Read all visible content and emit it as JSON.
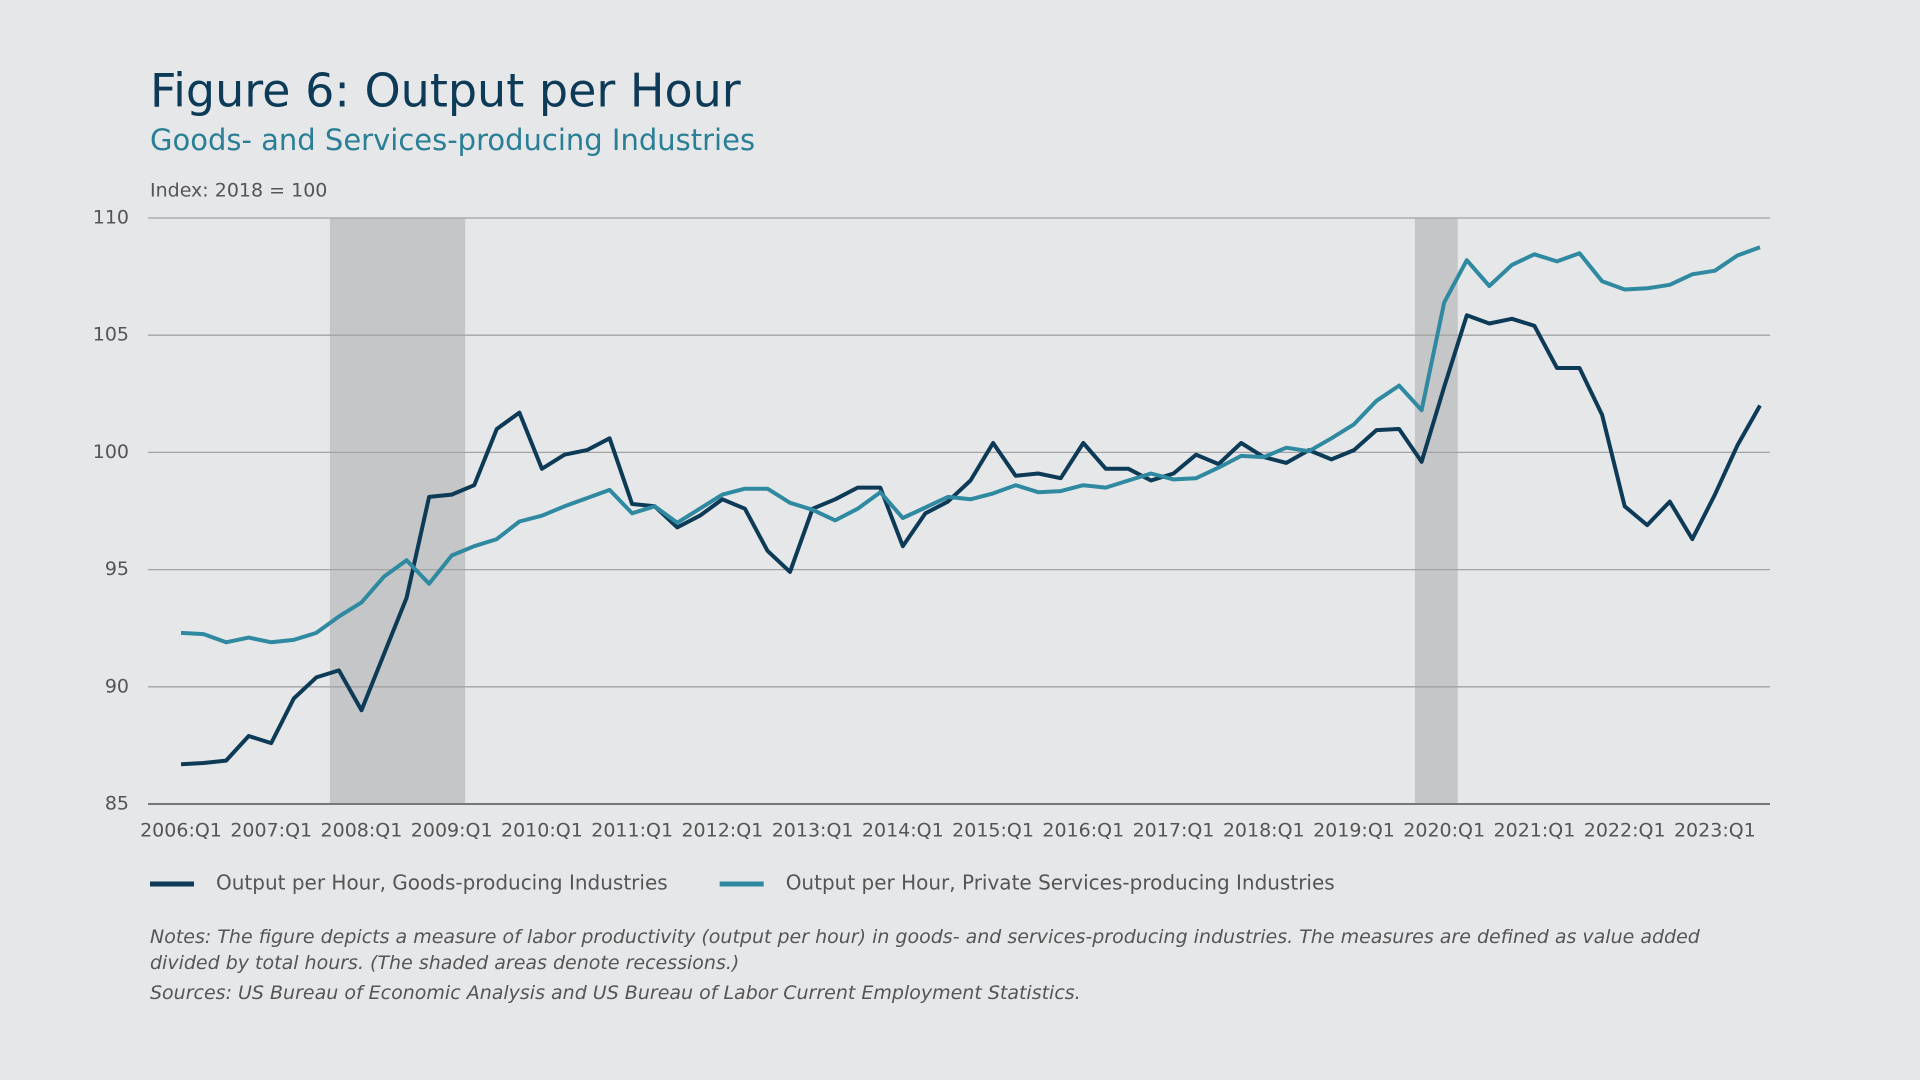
{
  "chart_data": {
    "type": "line",
    "title": "Figure 6: Output per Hour",
    "subtitle": "Goods- and Services-producing Industries",
    "y_axis_label": "Index: 2018 = 100",
    "categories": [
      "2006:Q1",
      null,
      null,
      null,
      "2007:Q1",
      null,
      null,
      null,
      "2008:Q1",
      null,
      null,
      null,
      "2009:Q1",
      null,
      null,
      null,
      "2010:Q1",
      null,
      null,
      null,
      "2011:Q1",
      null,
      null,
      null,
      "2012:Q1",
      null,
      null,
      null,
      "2013:Q1",
      null,
      null,
      null,
      "2014:Q1",
      null,
      null,
      null,
      "2015:Q1",
      null,
      null,
      null,
      "2016:Q1",
      null,
      null,
      null,
      "2017:Q1",
      null,
      null,
      null,
      "2018:Q1",
      null,
      null,
      null,
      "2019:Q1",
      null,
      null,
      null,
      "2020:Q1",
      null,
      null,
      null,
      "2021:Q1",
      null,
      null,
      null,
      "2022:Q1",
      null,
      null,
      null,
      "2023:Q1",
      null,
      null
    ],
    "series": [
      {
        "name": "Output per Hour, Goods-producing Industries",
        "color": "#0d3a56",
        "values": [
          86.7,
          86.75,
          86.85,
          87.9,
          87.6,
          89.5,
          90.4,
          90.7,
          89.0,
          91.4,
          93.8,
          98.1,
          98.2,
          98.6,
          101.0,
          101.7,
          99.3,
          99.9,
          100.1,
          100.6,
          97.8,
          97.7,
          96.8,
          97.3,
          98.0,
          97.6,
          95.8,
          94.9,
          97.6,
          98.0,
          98.5,
          98.5,
          96.0,
          97.4,
          97.9,
          98.8,
          100.4,
          99.0,
          99.1,
          98.9,
          100.4,
          99.3,
          99.3,
          98.8,
          99.1,
          99.9,
          99.5,
          100.4,
          99.8,
          99.55,
          100.1,
          99.7,
          100.1,
          100.95,
          101.0,
          99.6,
          102.8,
          105.85,
          105.5,
          105.7,
          105.4,
          103.6,
          103.6,
          101.6,
          97.7,
          96.9,
          97.9,
          96.3,
          98.2,
          100.3,
          102.0
        ]
      },
      {
        "name": "Output per Hour, Private Services-producing Industries",
        "color": "#2f89a0",
        "values": [
          92.3,
          92.25,
          91.9,
          92.1,
          91.9,
          92.0,
          92.3,
          93.0,
          93.6,
          94.7,
          95.4,
          94.4,
          95.6,
          96.0,
          96.3,
          97.05,
          97.3,
          97.7,
          98.05,
          98.4,
          97.4,
          97.7,
          97.0,
          97.6,
          98.2,
          98.45,
          98.45,
          97.85,
          97.55,
          97.1,
          97.6,
          98.3,
          97.2,
          97.65,
          98.1,
          98.0,
          98.25,
          98.6,
          98.3,
          98.35,
          98.6,
          98.5,
          98.8,
          99.1,
          98.85,
          98.9,
          99.35,
          99.85,
          99.8,
          100.2,
          100.05,
          100.6,
          101.2,
          102.2,
          102.85,
          101.8,
          106.4,
          108.2,
          107.1,
          108.0,
          108.45,
          108.15,
          108.5,
          107.3,
          106.95,
          107.0,
          107.15,
          107.6,
          107.75,
          108.4,
          108.75
        ]
      }
    ],
    "recessions": [
      [
        6.6,
        12.6
      ],
      [
        54.7,
        56.6
      ]
    ],
    "recession_color": "#c5c6c8",
    "ylim": [
      85,
      110
    ],
    "yticks": [
      85,
      90,
      95,
      100,
      105,
      110
    ],
    "grid": true,
    "legend": "bottom",
    "notes": "Notes: The figure depicts a measure of labor productivity (output per hour) in goods- and services-producing industries. The measures are defined as value added divided by total hours. (The shaded areas denote recessions.)",
    "sources": "Sources: US Bureau of Economic Analysis and US Bureau of Labor Current Employment Statistics."
  }
}
